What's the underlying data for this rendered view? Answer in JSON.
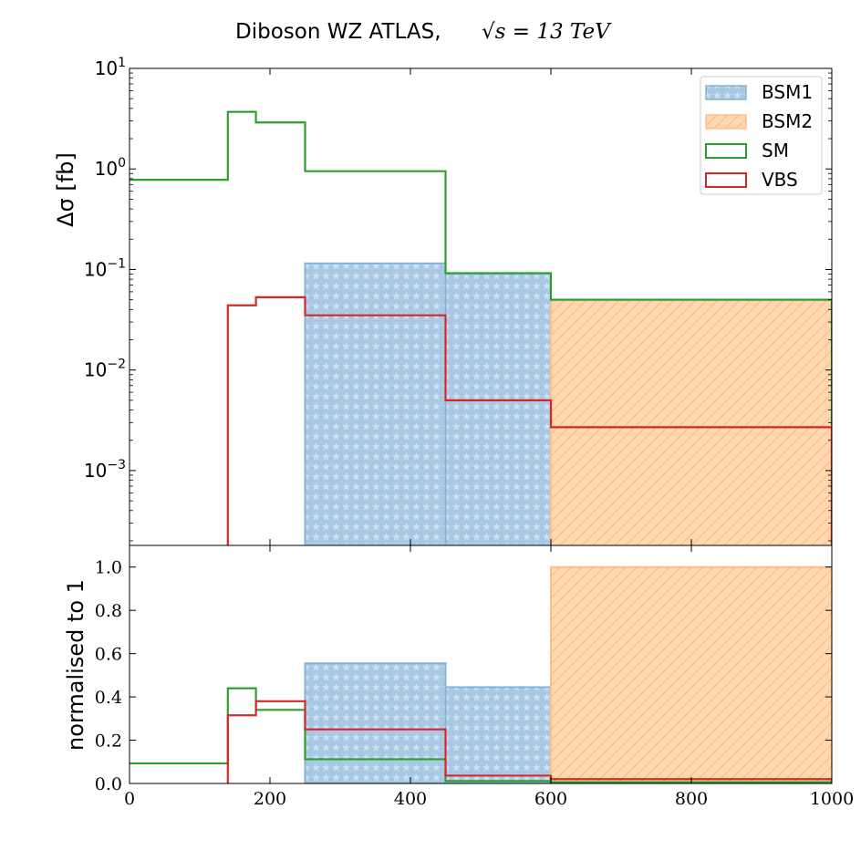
{
  "title": {
    "main": "Diboson  WZ ATLAS,",
    "math": "√s = 13 TeV"
  },
  "colors": {
    "SM": "#2ca02c",
    "VBS": "#d62728",
    "BSM1": "#1f77b4",
    "BSM2": "#ff7f0e"
  },
  "chart_data": [
    {
      "type": "step-histogram",
      "panel": "top",
      "yscale": "log",
      "ylabel": "Δσ [fb]",
      "xlim": [
        0,
        1000
      ],
      "ylim": [
        0.00018,
        10
      ],
      "yticks": [
        {
          "value": 10,
          "base": "10",
          "exp": "1"
        },
        {
          "value": 1,
          "base": "10",
          "exp": "0"
        },
        {
          "value": 0.1,
          "base": "10",
          "exp": "−1"
        },
        {
          "value": 0.01,
          "base": "10",
          "exp": "−2"
        },
        {
          "value": 0.001,
          "base": "10",
          "exp": "−3"
        }
      ],
      "bin_edges": [
        0,
        140,
        180,
        250,
        450,
        600,
        1000
      ],
      "legend_position": "top-right",
      "series": [
        {
          "name": "BSM1",
          "style": "filled-stars",
          "values": [
            0,
            0,
            0,
            0.115,
            0.09,
            0
          ]
        },
        {
          "name": "BSM2",
          "style": "filled-hatch",
          "values": [
            0,
            0,
            0,
            0,
            0,
            0.05
          ]
        },
        {
          "name": "SM",
          "style": "step",
          "values": [
            0.78,
            3.7,
            2.9,
            0.95,
            0.092,
            0.05
          ]
        },
        {
          "name": "VBS",
          "style": "step",
          "values": [
            0,
            0.044,
            0.053,
            0.035,
            0.005,
            0.0027
          ]
        }
      ]
    },
    {
      "type": "step-histogram",
      "panel": "bottom",
      "yscale": "linear",
      "ylabel": "normalised to 1",
      "xlim": [
        0,
        1000
      ],
      "ylim": [
        0,
        1.1
      ],
      "yticks": [
        "0.0",
        "0.2",
        "0.4",
        "0.6",
        "0.8",
        "1.0"
      ],
      "xticks": [
        "0",
        "200",
        "400",
        "600",
        "800",
        "1000"
      ],
      "bin_edges": [
        0,
        140,
        180,
        250,
        450,
        600,
        1000
      ],
      "series": [
        {
          "name": "BSM1",
          "style": "filled-stars",
          "values": [
            0,
            0,
            0,
            0.555,
            0.445,
            0
          ]
        },
        {
          "name": "BSM2",
          "style": "filled-hatch",
          "values": [
            0,
            0,
            0,
            0,
            0,
            1.0
          ]
        },
        {
          "name": "SM",
          "style": "step",
          "values": [
            0.093,
            0.44,
            0.34,
            0.112,
            0.011,
            0.006
          ]
        },
        {
          "name": "VBS",
          "style": "step",
          "values": [
            0,
            0.315,
            0.38,
            0.25,
            0.036,
            0.02
          ]
        }
      ]
    }
  ]
}
